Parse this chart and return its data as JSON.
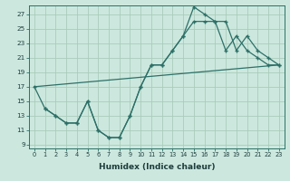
{
  "xlabel": "Humidex (Indice chaleur)",
  "bg_color": "#cce8de",
  "grid_color": "#aaccbb",
  "line_color": "#2d7068",
  "xlim": [
    -0.5,
    23.5
  ],
  "ylim": [
    8.5,
    28.2
  ],
  "xticks": [
    0,
    1,
    2,
    3,
    4,
    5,
    6,
    7,
    8,
    9,
    10,
    11,
    12,
    13,
    14,
    15,
    16,
    17,
    18,
    19,
    20,
    21,
    22,
    23
  ],
  "yticks": [
    9,
    11,
    13,
    15,
    17,
    19,
    21,
    23,
    25,
    27
  ],
  "line1_x": [
    0,
    1,
    2,
    3,
    4,
    5,
    6,
    7,
    8,
    9,
    10,
    11,
    12,
    13,
    14,
    15,
    16,
    17,
    18,
    19,
    20,
    21,
    22,
    23
  ],
  "line1_y": [
    17,
    14,
    13,
    12,
    12,
    15,
    11,
    10,
    10,
    13,
    17,
    20,
    20,
    22,
    24,
    28,
    27,
    26,
    26,
    22,
    24,
    22,
    21,
    20
  ],
  "line2_x": [
    1,
    2,
    3,
    4,
    5,
    6,
    7,
    8,
    9,
    10,
    11,
    12,
    13,
    14,
    15,
    16,
    17,
    18,
    19,
    20,
    21,
    22,
    23
  ],
  "line2_y": [
    14,
    13,
    12,
    12,
    15,
    11,
    10,
    10,
    13,
    17,
    20,
    20,
    22,
    24,
    26,
    26,
    26,
    22,
    24,
    22,
    21,
    20,
    20
  ],
  "line3_x": [
    0,
    23
  ],
  "line3_y": [
    17,
    20
  ]
}
